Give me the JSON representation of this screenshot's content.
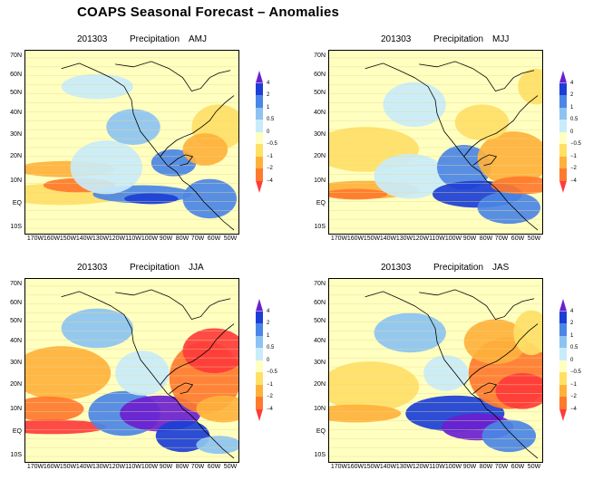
{
  "title": "COAPS Seasonal Forecast – Anomalies",
  "panels": [
    {
      "date": "201303",
      "variable": "Precipitation",
      "season": "AMJ"
    },
    {
      "date": "201303",
      "variable": "Precipitation",
      "season": "MJJ"
    },
    {
      "date": "201303",
      "variable": "Precipitation",
      "season": "JJA"
    },
    {
      "date": "201303",
      "variable": "Precipitation",
      "season": "JAS"
    }
  ],
  "lat_labels": [
    "70N",
    "60N",
    "50N",
    "40N",
    "30N",
    "20N",
    "10N",
    "EQ",
    "10S"
  ],
  "lon_labels": [
    "170W",
    "160W",
    "150W",
    "140W",
    "130W",
    "120W",
    "110W",
    "100W",
    "90W",
    "80W",
    "70W",
    "60W",
    "50W"
  ],
  "colorbar": {
    "labels": [
      "4",
      "2",
      "1",
      "0.5",
      "0",
      "−0.5",
      "−1",
      "−2",
      "−4"
    ],
    "colors": [
      "#6a1fd0",
      "#1b3fd6",
      "#4b86e6",
      "#8cc3f2",
      "#c9ecfb",
      "#ffffc0",
      "#ffe066",
      "#ffb13b",
      "#ff7a2e",
      "#ff3b3b"
    ]
  },
  "colors": {
    "coast": "#000000",
    "background": "#ffffc0"
  }
}
